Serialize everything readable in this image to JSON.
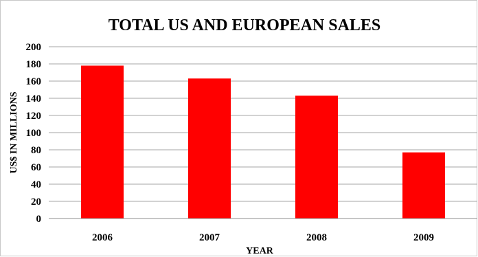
{
  "chart_data": {
    "type": "bar",
    "title": "TOTAL US AND EUROPEAN SALES",
    "xlabel": "YEAR",
    "ylabel": "US$ IN MILLIONS",
    "categories": [
      "2006",
      "2007",
      "2008",
      "2009"
    ],
    "values": [
      178,
      163,
      143,
      77
    ],
    "ylim": [
      0,
      200
    ],
    "yticks": [
      0,
      20,
      40,
      60,
      80,
      100,
      120,
      140,
      160,
      180,
      200
    ],
    "grid": true,
    "legend": "none",
    "bar_color": "#ff0000",
    "grid_color": "#a6a6a6"
  }
}
